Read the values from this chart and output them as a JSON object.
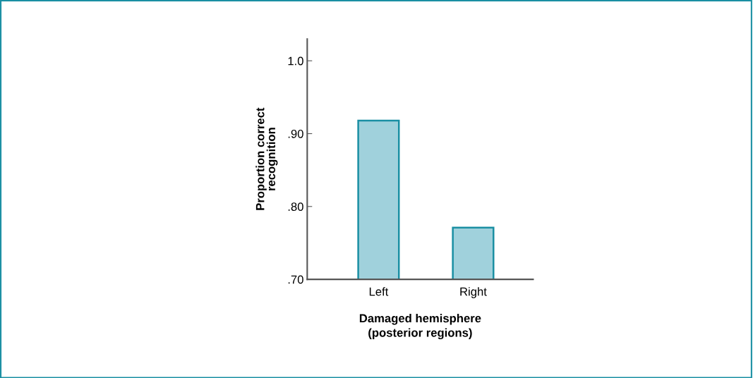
{
  "chart_data": {
    "type": "bar",
    "categories": [
      "Left",
      "Right"
    ],
    "values": [
      0.918,
      0.771
    ],
    "color": "#a0d1dc",
    "ylim": [
      0.7,
      1.03
    ],
    "yticks": [
      {
        "value": 0.7,
        "label": ".70"
      },
      {
        "value": 0.8,
        "label": ".80"
      },
      {
        "value": 0.9,
        "label": ".90"
      },
      {
        "value": 1.0,
        "label": "1.0"
      }
    ],
    "ylabel": "Proportion correct\nrecognition",
    "xlabel": "Damaged hemisphere\n(posterior regions)",
    "grid": false
  }
}
